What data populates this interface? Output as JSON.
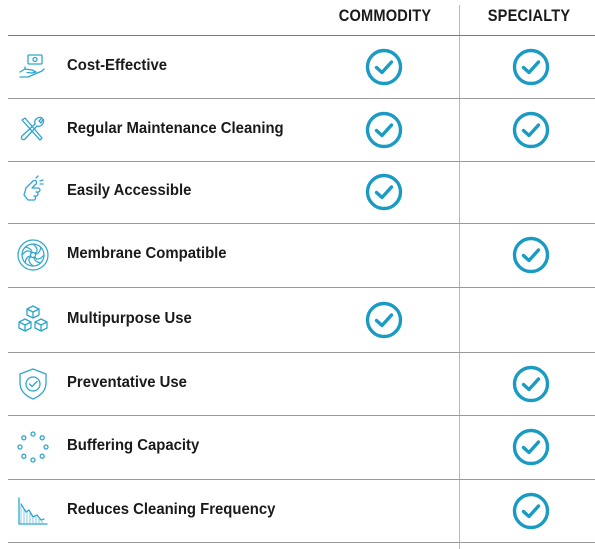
{
  "columns": [
    "COMMODITY",
    "SPECIALTY"
  ],
  "colors": {
    "accent": "#1b9bc4",
    "text": "#1a1a1a",
    "divider": "#9a9a9a"
  },
  "rows": [
    {
      "label": "Cost-Effective",
      "icon": "hand-money-icon",
      "commodity": true,
      "specialty": true
    },
    {
      "label": "Regular Maintenance Cleaning",
      "icon": "tools-icon",
      "commodity": true,
      "specialty": true
    },
    {
      "label": "Easily Accessible",
      "icon": "pointing-hand-icon",
      "commodity": true,
      "specialty": false
    },
    {
      "label": "Membrane Compatible",
      "icon": "membrane-icon",
      "commodity": false,
      "specialty": true
    },
    {
      "label": "Multipurpose Use",
      "icon": "boxes-icon",
      "commodity": true,
      "specialty": false
    },
    {
      "label": "Preventative Use",
      "icon": "shield-check-icon",
      "commodity": false,
      "specialty": true
    },
    {
      "label": "Buffering Capacity",
      "icon": "dots-circle-icon",
      "commodity": false,
      "specialty": true
    },
    {
      "label": "Reduces Cleaning Frequency",
      "icon": "declining-chart-icon",
      "commodity": false,
      "specialty": true
    }
  ]
}
